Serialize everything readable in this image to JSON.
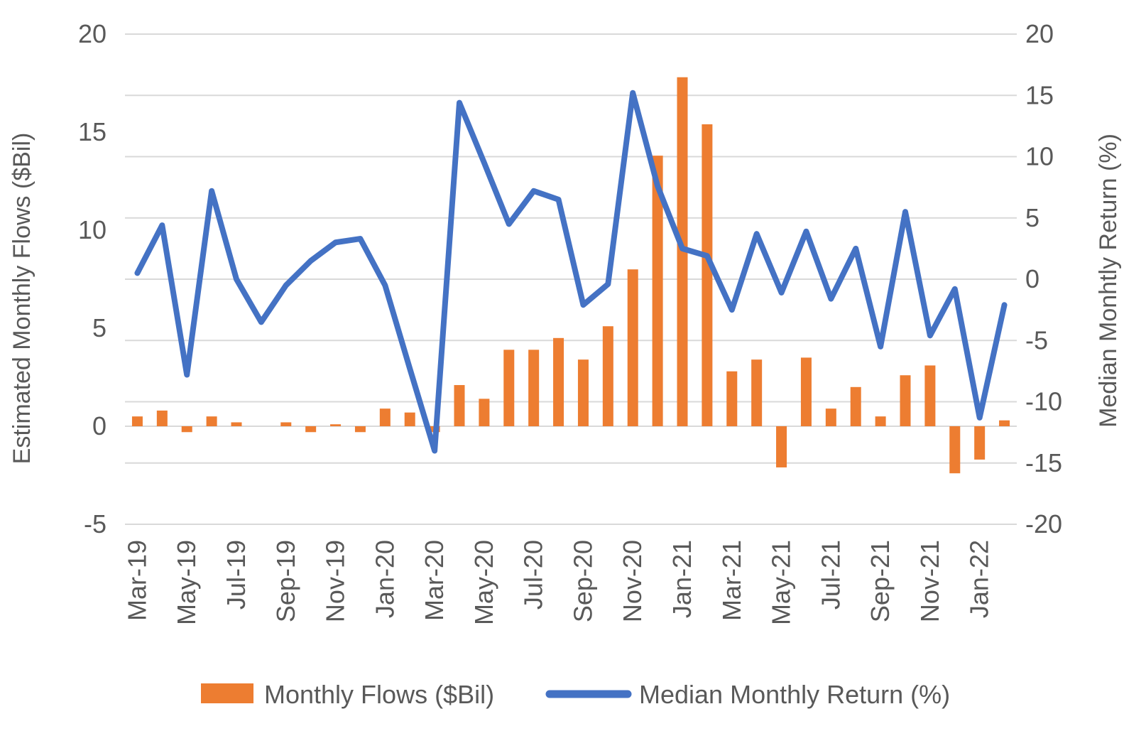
{
  "chart_data": {
    "type": "combo-bar-line-dual-axis",
    "title": "",
    "categories": [
      "Mar-19",
      "Apr-19",
      "May-19",
      "Jun-19",
      "Jul-19",
      "Aug-19",
      "Sep-19",
      "Oct-19",
      "Nov-19",
      "Dec-19",
      "Jan-20",
      "Feb-20",
      "Mar-20",
      "Apr-20",
      "May-20",
      "Jun-20",
      "Jul-20",
      "Aug-20",
      "Sep-20",
      "Oct-20",
      "Nov-20",
      "Dec-20",
      "Jan-21",
      "Feb-21",
      "Mar-21",
      "Apr-21",
      "May-21",
      "Jun-21",
      "Jul-21",
      "Aug-21",
      "Sep-21",
      "Oct-21",
      "Nov-21",
      "Dec-21",
      "Jan-22",
      "Feb-22"
    ],
    "x_tick_labels_shown": [
      "Mar-19",
      "May-19",
      "Jul-19",
      "Sep-19",
      "Nov-19",
      "Jan-20",
      "Mar-20",
      "May-20",
      "Jul-20",
      "Sep-20",
      "Nov-20",
      "Jan-21",
      "Mar-21",
      "May-21",
      "Jul-21",
      "Sep-21",
      "Nov-21",
      "Jan-22"
    ],
    "series": [
      {
        "name": "Monthly Flows ($Bil)",
        "type": "bar",
        "axis": "left",
        "color": "#ED7D31",
        "values": [
          0.5,
          0.8,
          -0.3,
          0.5,
          0.2,
          0.0,
          0.2,
          -0.3,
          0.1,
          -0.3,
          0.9,
          0.7,
          -0.3,
          2.1,
          1.4,
          3.9,
          3.9,
          4.5,
          3.4,
          5.1,
          8.0,
          13.8,
          17.8,
          15.4,
          2.8,
          3.4,
          -2.1,
          3.5,
          0.9,
          2.0,
          0.5,
          2.6,
          3.1,
          -2.4,
          -1.7,
          0.3
        ]
      },
      {
        "name": "Median Monthly Return (%)",
        "type": "line",
        "axis": "right",
        "color": "#4472C4",
        "values": [
          0.5,
          4.4,
          -7.8,
          7.2,
          0.0,
          -3.5,
          -0.5,
          1.5,
          3.0,
          3.3,
          -0.5,
          -7.3,
          -14.0,
          14.4,
          9.5,
          4.5,
          7.2,
          6.5,
          -2.1,
          -0.4,
          15.2,
          7.6,
          2.5,
          1.9,
          -2.5,
          3.7,
          -1.1,
          3.9,
          -1.6,
          2.5,
          -5.5,
          5.5,
          -4.6,
          -0.8,
          -11.3,
          -2.1
        ]
      }
    ],
    "left_axis": {
      "title": "Estimated Monthly Flows ($Bil)",
      "ticks": [
        20,
        15,
        10,
        5,
        0,
        -5
      ],
      "range": [
        -5,
        20
      ]
    },
    "right_axis": {
      "title": "Median Monhtly Return (%)",
      "ticks": [
        20,
        15,
        10,
        5,
        0,
        -5,
        -10,
        -15,
        -20
      ],
      "range": [
        -20,
        20
      ]
    },
    "grid": true,
    "gridline_color": "#D9D9D9",
    "text_color": "#595959",
    "legend_position": "bottom"
  },
  "legend": {
    "items": [
      {
        "label": "Monthly Flows ($Bil)",
        "swatch": "bar-swatch",
        "color": "#ED7D31"
      },
      {
        "label": "Median Monthly Return (%)",
        "swatch": "line-swatch",
        "color": "#4472C4"
      }
    ]
  }
}
